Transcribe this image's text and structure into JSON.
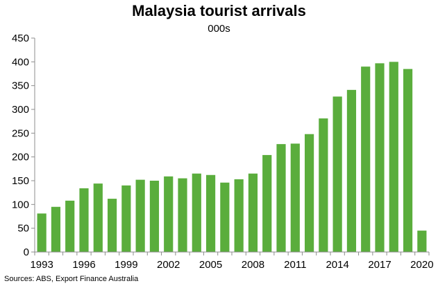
{
  "chart_data": {
    "type": "bar",
    "title": "Malaysia tourist arrivals",
    "subtitle": "000s",
    "source": "Sources: ABS, Export Finance Australia",
    "categories": [
      "1993",
      "1994",
      "1995",
      "1996",
      "1997",
      "1998",
      "1999",
      "2000",
      "2001",
      "2002",
      "2003",
      "2004",
      "2005",
      "2006",
      "2007",
      "2008",
      "2009",
      "2010",
      "2011",
      "2012",
      "2013",
      "2014",
      "2015",
      "2016",
      "2017",
      "2018",
      "2019",
      "2020"
    ],
    "values": [
      81,
      95,
      108,
      134,
      144,
      112,
      140,
      152,
      150,
      159,
      155,
      165,
      162,
      146,
      153,
      165,
      204,
      227,
      228,
      248,
      281,
      327,
      341,
      390,
      397,
      400,
      385,
      45
    ],
    "x_tick_labels": [
      "1993",
      "1996",
      "1999",
      "2002",
      "2005",
      "2008",
      "2011",
      "2014",
      "2017",
      "2020"
    ],
    "ylim": [
      0,
      450
    ],
    "y_ticks": [
      0,
      50,
      100,
      150,
      200,
      250,
      300,
      350,
      400,
      450
    ],
    "grid": false,
    "bar_color": "#5AAD3C",
    "axis_color": "#8C8C8C"
  }
}
